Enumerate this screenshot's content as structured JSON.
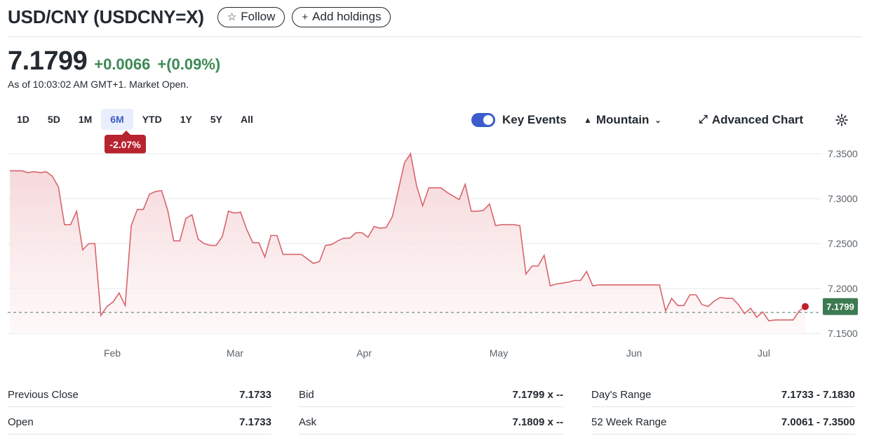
{
  "header": {
    "title": "USD/CNY (USDCNY=X)",
    "follow_label": "Follow",
    "add_holdings_label": "Add holdings"
  },
  "quote": {
    "price": "7.1799",
    "change": "+0.0066",
    "change_pct": "+(0.09%)",
    "as_of": "As of 10:03:02 AM GMT+1. Market Open."
  },
  "ranges": [
    "1D",
    "5D",
    "1M",
    "6M",
    "YTD",
    "1Y",
    "5Y",
    "All"
  ],
  "active_range": "6M",
  "range_change": "-2.07%",
  "controls": {
    "key_events_label": "Key Events",
    "key_events_on": true,
    "chart_type_label": "Mountain",
    "advanced_chart_label": "Advanced Chart"
  },
  "chart_data": {
    "type": "area",
    "y_ticks": [
      "7.3500",
      "7.3000",
      "7.2500",
      "7.2000",
      "7.1500"
    ],
    "ylim": [
      7.15,
      7.35
    ],
    "x_labels": [
      "Feb",
      "Mar",
      "Apr",
      "May",
      "Jun",
      "Jul"
    ],
    "current_label": "7.1799",
    "previous_close": 7.1733,
    "series": [
      {
        "values": [
          7.331,
          7.331,
          7.331,
          7.329,
          7.33,
          7.329,
          7.33,
          7.325,
          7.313,
          7.271,
          7.271,
          7.286,
          7.243,
          7.25,
          7.25,
          7.17,
          7.18,
          7.185,
          7.195,
          7.181,
          7.27,
          7.288,
          7.288,
          7.305,
          7.308,
          7.309,
          7.287,
          7.253,
          7.253,
          7.278,
          7.282,
          7.255,
          7.25,
          7.248,
          7.248,
          7.258,
          7.286,
          7.284,
          7.285,
          7.266,
          7.251,
          7.251,
          7.235,
          7.259,
          7.259,
          7.238,
          7.238,
          7.238,
          7.238,
          7.233,
          7.228,
          7.23,
          7.248,
          7.249,
          7.253,
          7.256,
          7.256,
          7.262,
          7.262,
          7.257,
          7.269,
          7.267,
          7.268,
          7.28,
          7.31,
          7.34,
          7.35,
          7.314,
          7.292,
          7.312,
          7.312,
          7.312,
          7.307,
          7.303,
          7.299,
          7.316,
          7.286,
          7.286,
          7.287,
          7.294,
          7.27,
          7.271,
          7.271,
          7.271,
          7.27,
          7.216,
          7.225,
          7.225,
          7.237,
          7.203,
          7.205,
          7.206,
          7.207,
          7.209,
          7.209,
          7.219,
          7.203,
          7.204,
          7.204,
          7.204,
          7.204,
          7.204,
          7.204,
          7.204,
          7.204,
          7.204,
          7.204,
          7.204,
          7.175,
          7.189,
          7.181,
          7.181,
          7.193,
          7.193,
          7.182,
          7.18,
          7.186,
          7.19,
          7.189,
          7.189,
          7.182,
          7.172,
          7.178,
          7.168,
          7.174,
          7.164,
          7.165,
          7.165,
          7.165,
          7.165,
          7.175,
          7.1799
        ]
      }
    ]
  },
  "stats": [
    {
      "label": "Previous Close",
      "value": "7.1733"
    },
    {
      "label": "Open",
      "value": "7.1733"
    },
    {
      "label": "Bid",
      "value": "7.1799 x --"
    },
    {
      "label": "Ask",
      "value": "7.1809 x --"
    },
    {
      "label": "Day's Range",
      "value": "7.1733 - 7.1830"
    },
    {
      "label": "52 Week Range",
      "value": "7.0061 - 7.3500"
    }
  ],
  "colors": {
    "line": "#d9646c",
    "area_top": "#f4d7da",
    "positive": "#3c8a55",
    "negative_badge": "#b8232f",
    "price_tag": "#3c7a52",
    "accent": "#3d5ccb"
  }
}
